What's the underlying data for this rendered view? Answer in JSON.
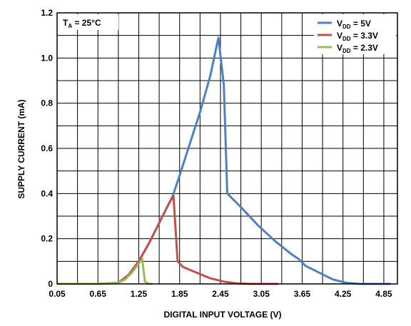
{
  "chart_data": {
    "type": "line",
    "xlabel": "DIGITAL INPUT VOLTAGE (V)",
    "ylabel": "SUPPLY CURRENT (mA)",
    "xlim": [
      0.05,
      5.05
    ],
    "ylim": [
      0,
      1.2
    ],
    "x_ticks": [
      "0.05",
      "0.65",
      "1.25",
      "1.85",
      "2.45",
      "3.05",
      "3.65",
      "4.25",
      "4.85"
    ],
    "y_ticks": [
      "0",
      "0.2",
      "0.4",
      "0.6",
      "0.8",
      "1.0",
      "1.2"
    ],
    "grid": true,
    "legend_position": "top-right",
    "annotation": {
      "main": "T",
      "sub": "A",
      "rest": " = 25°C"
    },
    "series": [
      {
        "name": "V_DD = 5V",
        "legend": {
          "main": "V",
          "sub": "DD",
          "rest": " = 5V"
        },
        "color": "#4F81BD",
        "points": [
          [
            0.05,
            0.0
          ],
          [
            0.65,
            0.0
          ],
          [
            0.95,
            0.005
          ],
          [
            1.1,
            0.04
          ],
          [
            1.25,
            0.1
          ],
          [
            1.4,
            0.18
          ],
          [
            1.55,
            0.27
          ],
          [
            1.7,
            0.36
          ],
          [
            1.75,
            0.39
          ],
          [
            1.85,
            0.48
          ],
          [
            2.0,
            0.62
          ],
          [
            2.15,
            0.76
          ],
          [
            2.3,
            0.92
          ],
          [
            2.42,
            1.09
          ],
          [
            2.5,
            0.88
          ],
          [
            2.55,
            0.4
          ],
          [
            2.75,
            0.34
          ],
          [
            3.0,
            0.26
          ],
          [
            3.25,
            0.19
          ],
          [
            3.5,
            0.13
          ],
          [
            3.6,
            0.11
          ],
          [
            3.7,
            0.08
          ],
          [
            3.9,
            0.05
          ],
          [
            4.1,
            0.02
          ],
          [
            4.3,
            0.005
          ],
          [
            4.5,
            0.0
          ],
          [
            4.95,
            0.0
          ]
        ]
      },
      {
        "name": "V_DD = 3.3V",
        "legend": {
          "main": "V",
          "sub": "DD",
          "rest": " = 3.3V"
        },
        "color": "#C0504D",
        "points": [
          [
            0.05,
            0.0
          ],
          [
            0.65,
            0.0
          ],
          [
            0.95,
            0.005
          ],
          [
            1.1,
            0.04
          ],
          [
            1.25,
            0.1
          ],
          [
            1.4,
            0.18
          ],
          [
            1.55,
            0.27
          ],
          [
            1.7,
            0.36
          ],
          [
            1.76,
            0.39
          ],
          [
            1.82,
            0.1
          ],
          [
            1.9,
            0.075
          ],
          [
            2.1,
            0.05
          ],
          [
            2.3,
            0.025
          ],
          [
            2.5,
            0.01
          ],
          [
            2.7,
            0.002
          ],
          [
            2.9,
            0.0
          ],
          [
            3.3,
            0.0
          ]
        ]
      },
      {
        "name": "V_DD = 2.3V",
        "legend": {
          "main": "V",
          "sub": "DD",
          "rest": " = 2.3V"
        },
        "color": "#9BBB59",
        "points": [
          [
            0.05,
            0.0
          ],
          [
            0.65,
            0.0
          ],
          [
            0.95,
            0.005
          ],
          [
            1.05,
            0.02
          ],
          [
            1.15,
            0.05
          ],
          [
            1.25,
            0.09
          ],
          [
            1.3,
            0.11
          ],
          [
            1.34,
            0.01
          ],
          [
            1.4,
            0.0
          ],
          [
            1.45,
            0.0
          ]
        ]
      }
    ]
  }
}
